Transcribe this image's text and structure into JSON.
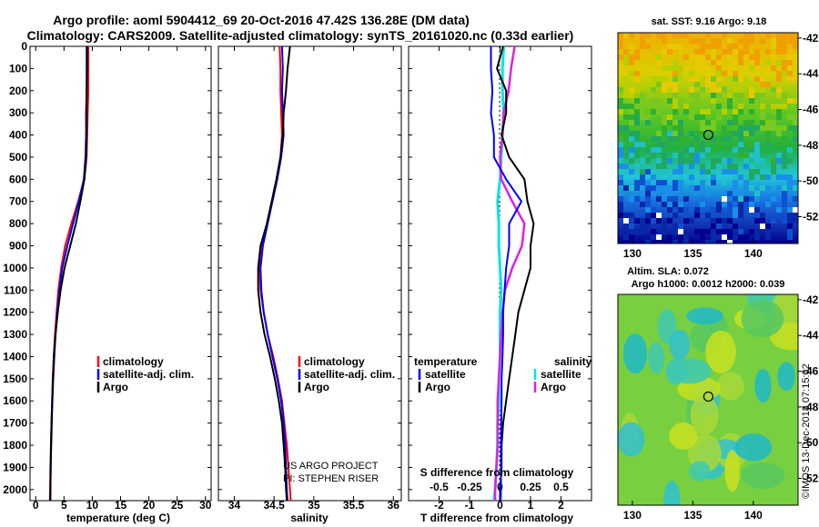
{
  "title_line1": "Argo profile: aoml 5904412_69 20-Oct-2016 47.42S 136.28E (DM data)",
  "title_line2": "Climatology: CARS2009. Satellite-adjusted climatology: synTS_20161020.nc (0.33d earlier)",
  "credit_line1": "US ARGO PROJECT",
  "credit_line2": "PI: STEPHEN RISER",
  "watermark": "©IMOS 13-Dec-2018 07:15:02",
  "colors": {
    "climatology": "#ff0000",
    "satellite": "#0000ff",
    "argo": "#000000",
    "salinity_satellite": "#00e5e5",
    "salinity_argo": "#e020e0"
  },
  "chart_data": [
    {
      "type": "line",
      "name": "temperature",
      "xlabel": "temperature (deg C)",
      "xlim": [
        -1,
        31
      ],
      "xticks": [
        "0",
        "5",
        "10",
        "15",
        "20",
        "25",
        "30"
      ],
      "ylim": [
        2050,
        0
      ],
      "yticks": [
        "0",
        "100",
        "200",
        "300",
        "400",
        "500",
        "600",
        "700",
        "800",
        "900",
        "1000",
        "1100",
        "1200",
        "1300",
        "1400",
        "1500",
        "1600",
        "1700",
        "1800",
        "1900",
        "2000"
      ],
      "legend": [
        "climatology",
        "satellite-adj. clim.",
        "Argo"
      ],
      "depth": [
        0,
        100,
        200,
        300,
        400,
        500,
        600,
        700,
        800,
        900,
        1000,
        1100,
        1200,
        1300,
        1400,
        1500,
        1600,
        1700,
        1800,
        1900,
        2000,
        2050
      ],
      "series": [
        {
          "name": "climatology",
          "values": [
            9.3,
            9.3,
            9.3,
            9.2,
            9.1,
            9.0,
            8.6,
            7.5,
            6.3,
            5.2,
            4.5,
            4.0,
            3.7,
            3.4,
            3.2,
            3.0,
            2.9,
            2.8,
            2.7,
            2.6,
            2.55,
            2.5
          ]
        },
        {
          "name": "satellite-adj. clim.",
          "values": [
            9.0,
            9.0,
            9.0,
            8.9,
            8.9,
            8.8,
            8.5,
            7.6,
            6.6,
            5.6,
            4.7,
            4.2,
            3.8,
            3.5,
            3.3,
            3.1,
            2.95,
            2.85,
            2.75,
            2.65,
            2.6,
            2.55
          ]
        },
        {
          "name": "Argo",
          "values": [
            9.1,
            9.1,
            9.0,
            9.0,
            9.0,
            8.9,
            8.6,
            7.9,
            7.1,
            6.1,
            5.1,
            4.4,
            3.9,
            3.5,
            3.2,
            3.05,
            2.9,
            2.8,
            2.7,
            2.65,
            2.6,
            2.6
          ]
        }
      ]
    },
    {
      "type": "line",
      "name": "salinity",
      "xlabel": "salinity",
      "xlim": [
        33.8,
        36.1
      ],
      "xticks": [
        "34",
        "34.5",
        "35",
        "35.5",
        "36"
      ],
      "ylim": [
        2050,
        0
      ],
      "legend": [
        "climatology",
        "satellite-adj. clim.",
        "Argo"
      ],
      "depth": [
        0,
        100,
        200,
        300,
        400,
        500,
        600,
        700,
        800,
        900,
        1000,
        1100,
        1200,
        1300,
        1400,
        1500,
        1600,
        1700,
        1800,
        1900,
        2000,
        2050
      ],
      "series": [
        {
          "name": "climatology",
          "values": [
            34.57,
            34.58,
            34.58,
            34.59,
            34.6,
            34.58,
            34.53,
            34.47,
            34.41,
            34.35,
            34.32,
            34.33,
            34.37,
            34.42,
            34.49,
            34.55,
            34.6,
            34.63,
            34.66,
            34.68,
            34.7,
            34.71
          ]
        },
        {
          "name": "satellite-adj. clim.",
          "values": [
            34.6,
            34.61,
            34.6,
            34.61,
            34.62,
            34.59,
            34.54,
            34.48,
            34.42,
            34.36,
            34.33,
            34.34,
            34.37,
            34.42,
            34.48,
            34.54,
            34.59,
            34.62,
            34.64,
            34.65,
            34.66,
            34.67
          ]
        },
        {
          "name": "Argo",
          "values": [
            34.7,
            34.67,
            34.65,
            34.62,
            34.61,
            34.58,
            34.53,
            34.47,
            34.41,
            34.33,
            34.3,
            34.3,
            34.33,
            34.38,
            34.45,
            34.51,
            34.56,
            34.6,
            34.62,
            34.64,
            34.65,
            34.66
          ]
        }
      ]
    },
    {
      "type": "line",
      "name": "differences",
      "xlabel": "T difference from climatology",
      "xlabel_top": "S difference from climatology",
      "xlim": [
        -3,
        3
      ],
      "xticks": [
        "-2",
        "-1",
        "0",
        "1",
        "2"
      ],
      "xticks_salinity": [
        "-0.5",
        "-0.25",
        "0",
        "0.25",
        "0.5"
      ],
      "ylim": [
        2050,
        0
      ],
      "legend_left_title": "temperature",
      "legend_right_title": "salinity",
      "legend": [
        "satellite",
        "Argo",
        "satellite",
        "Argo"
      ],
      "depth": [
        0,
        100,
        200,
        300,
        400,
        500,
        600,
        700,
        800,
        900,
        1000,
        1100,
        1200,
        1300,
        1400,
        1500,
        1600,
        1700,
        1800,
        1900,
        2000,
        2050
      ],
      "series": [
        {
          "name": "T satellite",
          "values": [
            -0.3,
            -0.3,
            -0.25,
            -0.3,
            -0.2,
            -0.2,
            0.2,
            0.7,
            0.3,
            0.3,
            0.2,
            0.15,
            0.1,
            0.1,
            0.08,
            0.05,
            0.05,
            0.04,
            0.03,
            0.03,
            0.03,
            0.02
          ]
        },
        {
          "name": "T Argo",
          "values": [
            0.1,
            -0.1,
            0.2,
            0.2,
            0.05,
            0.3,
            0.8,
            0.9,
            1.1,
            1.0,
            1.0,
            0.8,
            0.6,
            0.5,
            0.4,
            0.3,
            0.2,
            0.1,
            0.05,
            0.05,
            0.0,
            0.0
          ]
        },
        {
          "name": "S satellite",
          "values": [
            0.03,
            0.02,
            0.02,
            0.03,
            0.02,
            0.01,
            0.0,
            -0.02,
            -0.01,
            -0.01,
            0.0,
            0.01,
            0.0,
            0.0,
            0.0,
            -0.01,
            -0.01,
            -0.02,
            -0.02,
            -0.03,
            -0.04,
            -0.05
          ]
        },
        {
          "name": "S Argo",
          "values": [
            0.12,
            0.09,
            0.07,
            0.03,
            0.02,
            0.0,
            0.01,
            0.1,
            0.2,
            0.18,
            0.1,
            0.04,
            0.02,
            0.01,
            0.0,
            -0.01,
            -0.02,
            -0.02,
            -0.02,
            -0.03,
            -0.04,
            -0.04
          ]
        }
      ]
    },
    {
      "type": "heatmap",
      "name": "sst_map",
      "title": "sat. SST: 9.16 Argo: 9.18",
      "xticks": [
        "130",
        "135",
        "140"
      ],
      "yticks": [
        "-42",
        "-44",
        "-46",
        "-48",
        "-50",
        "-52"
      ],
      "xlim": [
        128.8,
        143.7
      ],
      "ylim": [
        -53.5,
        -41.7
      ],
      "marker": [
        136.28,
        -47.42
      ]
    },
    {
      "type": "heatmap",
      "name": "sla_map",
      "title_line1": "Altim. SLA: 0.072",
      "title_line2": "Argo h1000: 0.0012 h2000: 0.039",
      "xticks": [
        "130",
        "135",
        "140"
      ],
      "yticks": [
        "-42",
        "-44",
        "-46",
        "-48",
        "-50",
        "-52"
      ],
      "xlim": [
        128.8,
        143.7
      ],
      "ylim": [
        -53.5,
        -41.7
      ],
      "marker": [
        136.28,
        -47.42
      ]
    }
  ]
}
